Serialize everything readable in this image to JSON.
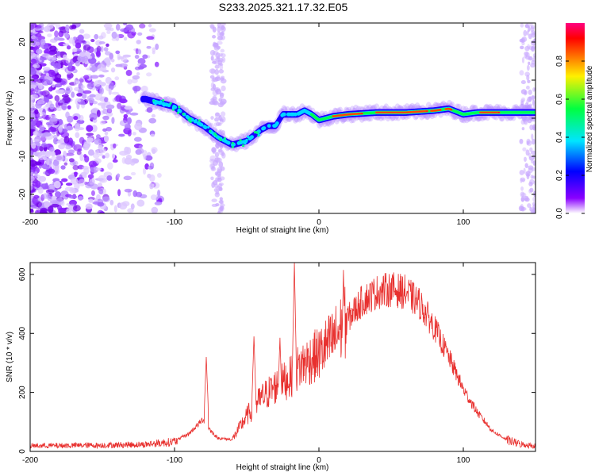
{
  "title": "S233.2025.321.17.32.E05",
  "chart_data": [
    {
      "type": "heatmap",
      "name": "spectrogram",
      "xlabel": "Height of straight line (km)",
      "ylabel": "Frequency (Hz)",
      "xlim": [
        -200,
        150
      ],
      "ylim": [
        -25,
        25
      ],
      "xticks": [
        -200,
        -100,
        0,
        100
      ],
      "xtick_labels": [
        "-200",
        "-100",
        "0",
        "100"
      ],
      "yticks": [
        -20,
        -10,
        0,
        10,
        20
      ],
      "ytick_labels": [
        "-20",
        "-10",
        "0",
        "10",
        "20"
      ],
      "colorbar": {
        "label": "Normalized spectral amplitude",
        "range": [
          0,
          1
        ],
        "ticks": [
          0.0,
          0.2,
          0.4,
          0.6,
          0.8
        ],
        "tick_labels": [
          "0.0",
          "0.2",
          "0.4",
          "0.6",
          "0.8"
        ],
        "colors": [
          "#ffffff",
          "#8a00ff",
          "#0000ff",
          "#00e5ff",
          "#00ff40",
          "#fff000",
          "#ff6000",
          "#ff0000",
          "#ff0080"
        ]
      },
      "ridge": {
        "x": [
          -120,
          -110,
          -100,
          -90,
          -80,
          -70,
          -60,
          -50,
          -40,
          -35,
          -30,
          -25,
          -20,
          -15,
          -10,
          -5,
          0,
          10,
          20,
          40,
          60,
          80,
          90,
          100,
          110,
          120,
          130,
          150
        ],
        "y": [
          5,
          4,
          3,
          0,
          -2,
          -5,
          -7,
          -6,
          -3,
          -2,
          -2,
          1,
          1,
          1,
          2,
          1,
          -0.5,
          0.5,
          1,
          1.5,
          1.5,
          2,
          2.5,
          1,
          1.5,
          1.5,
          1.5,
          1.5
        ]
      }
    },
    {
      "type": "line",
      "name": "snr",
      "xlabel": "Height of straight line (km)",
      "ylabel": "SNR (10 * v/v)",
      "xlim": [
        -200,
        150
      ],
      "ylim": [
        0,
        640
      ],
      "xticks": [
        -200,
        -100,
        0,
        100
      ],
      "xtick_labels": [
        "-200",
        "-100",
        "0",
        "100"
      ],
      "yticks": [
        0,
        200,
        400,
        600
      ],
      "ytick_labels": [
        "0",
        "200",
        "400",
        "600"
      ],
      "color": "#e8302e",
      "envelope": {
        "x": [
          -200,
          -150,
          -120,
          -100,
          -90,
          -80,
          -75,
          -70,
          -60,
          -50,
          -40,
          -30,
          -20,
          -15,
          -10,
          0,
          10,
          20,
          30,
          40,
          50,
          60,
          70,
          80,
          90,
          100,
          110,
          120,
          130,
          140,
          150
        ],
        "y": [
          20,
          22,
          25,
          35,
          60,
          110,
          70,
          45,
          40,
          120,
          180,
          220,
          250,
          280,
          300,
          330,
          380,
          450,
          510,
          540,
          550,
          540,
          500,
          420,
          320,
          210,
          130,
          70,
          40,
          25,
          20
        ]
      },
      "spikes": [
        {
          "x": -78,
          "y": 320
        },
        {
          "x": -45,
          "y": 390
        },
        {
          "x": -27,
          "y": 385
        },
        {
          "x": -17,
          "y": 640
        },
        {
          "x": 17,
          "y": 615
        }
      ]
    }
  ]
}
